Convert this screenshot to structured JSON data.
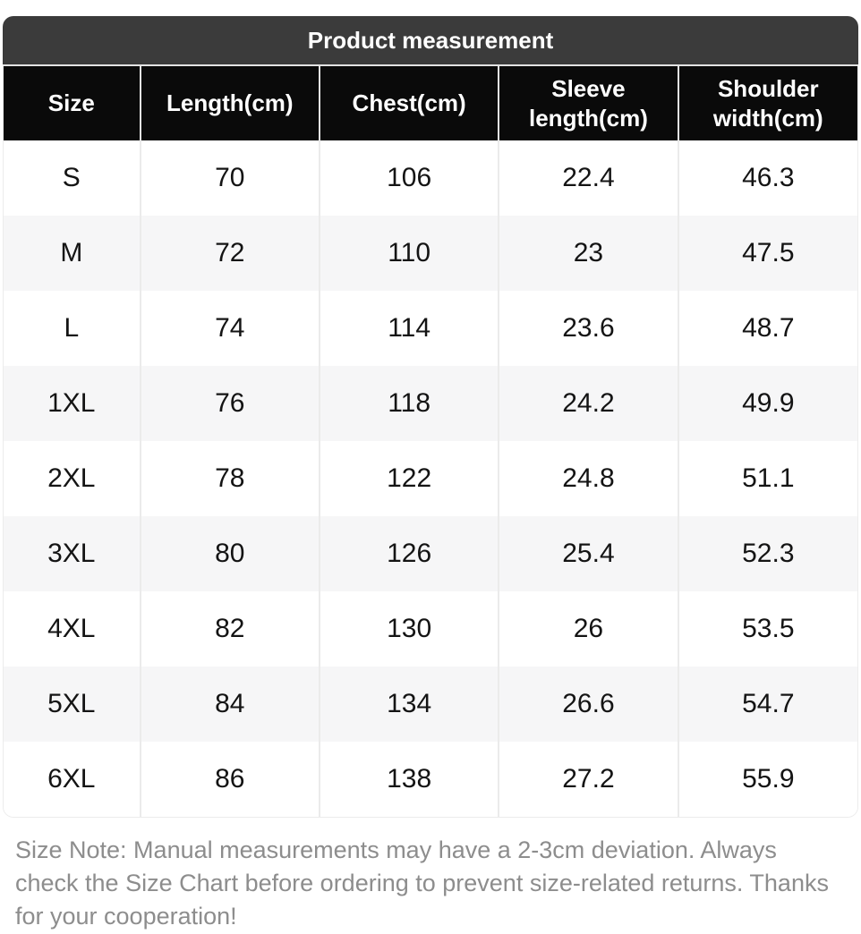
{
  "title": "Product measurement",
  "table": {
    "columns": [
      "Size",
      "Length(cm)",
      "Chest(cm)",
      "Sleeve length(cm)",
      "Shoulder width(cm)"
    ],
    "rows": [
      [
        "S",
        "70",
        "106",
        "22.4",
        "46.3"
      ],
      [
        "M",
        "72",
        "110",
        "23",
        "47.5"
      ],
      [
        "L",
        "74",
        "114",
        "23.6",
        "48.7"
      ],
      [
        "1XL",
        "76",
        "118",
        "24.2",
        "49.9"
      ],
      [
        "2XL",
        "78",
        "122",
        "24.8",
        "51.1"
      ],
      [
        "3XL",
        "80",
        "126",
        "25.4",
        "52.3"
      ],
      [
        "4XL",
        "82",
        "130",
        "26",
        "53.5"
      ],
      [
        "5XL",
        "84",
        "134",
        "26.6",
        "54.7"
      ],
      [
        "6XL",
        "86",
        "138",
        "27.2",
        "55.9"
      ]
    ]
  },
  "note": "Size Note: Manual measurements may have a 2-3cm deviation. Always check the Size Chart before ordering to prevent size-related returns. Thanks for your cooperation!",
  "colors": {
    "title_bar_bg": "#3b3b3b",
    "header_bg": "#0a0a0a",
    "header_text": "#ffffff",
    "row_alt_bg": "#f6f6f7",
    "cell_border": "#e3e3e3",
    "body_text": "#141414",
    "note_text": "#8d8d8d"
  },
  "chart_data": {
    "type": "table",
    "title": "Product measurement",
    "columns": [
      "Size",
      "Length(cm)",
      "Chest(cm)",
      "Sleeve length(cm)",
      "Shoulder width(cm)"
    ],
    "rows": [
      [
        "S",
        70,
        106,
        22.4,
        46.3
      ],
      [
        "M",
        72,
        110,
        23,
        47.5
      ],
      [
        "L",
        74,
        114,
        23.6,
        48.7
      ],
      [
        "1XL",
        76,
        118,
        24.2,
        49.9
      ],
      [
        "2XL",
        78,
        122,
        24.8,
        51.1
      ],
      [
        "3XL",
        80,
        126,
        25.4,
        52.3
      ],
      [
        "4XL",
        82,
        130,
        26,
        53.5
      ],
      [
        "5XL",
        84,
        134,
        26.6,
        54.7
      ],
      [
        "6XL",
        86,
        138,
        27.2,
        55.9
      ]
    ],
    "units": "cm",
    "footnote": "Size Note: Manual measurements may have a 2-3cm deviation. Always check the Size Chart before ordering to prevent size-related returns. Thanks for your cooperation!"
  }
}
